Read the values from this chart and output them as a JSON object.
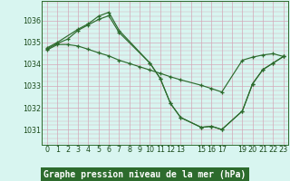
{
  "title": "Graphe pression niveau de la mer (hPa)",
  "background_color": "#d8f5f0",
  "grid_color": "#d4a8b8",
  "line_color": "#2d6b2d",
  "ylim": [
    1030.3,
    1036.9
  ],
  "yticks": [
    1031,
    1032,
    1033,
    1034,
    1035,
    1036
  ],
  "xlim": [
    -0.5,
    23.5
  ],
  "xtick_positions": [
    0,
    1,
    2,
    3,
    4,
    5,
    6,
    7,
    8,
    9,
    10,
    11,
    12,
    13,
    14,
    15,
    16,
    17,
    18,
    19,
    20,
    21,
    22,
    23
  ],
  "xtick_labels": [
    "0",
    "1",
    "2",
    "3",
    "4",
    "5",
    "6",
    "7",
    "8",
    "9",
    "10",
    "11",
    "12",
    "13",
    "",
    "15",
    "16",
    "17",
    "",
    "19",
    "20",
    "21",
    "22",
    "23"
  ],
  "line1_x": [
    0,
    1,
    3,
    4,
    5,
    6,
    7,
    10,
    11,
    12,
    13,
    15,
    16,
    17,
    19,
    20,
    21,
    22,
    23
  ],
  "line1_y": [
    1034.75,
    1035.0,
    1035.6,
    1035.85,
    1036.2,
    1036.38,
    1035.55,
    1034.05,
    1033.35,
    1032.2,
    1031.55,
    1031.1,
    1031.15,
    1031.0,
    1031.85,
    1033.1,
    1033.75,
    1034.05,
    1034.35
  ],
  "line2_x": [
    0,
    1,
    2,
    3,
    4,
    5,
    6,
    7,
    10,
    11,
    12,
    13,
    15,
    16,
    17,
    19,
    20,
    21,
    22,
    23
  ],
  "line2_y": [
    1034.7,
    1034.95,
    1035.15,
    1035.55,
    1035.8,
    1036.05,
    1036.22,
    1035.45,
    1034.05,
    1033.35,
    1032.2,
    1031.55,
    1031.1,
    1031.15,
    1031.0,
    1031.85,
    1033.1,
    1033.75,
    1034.05,
    1034.35
  ],
  "line3_x": [
    0,
    1,
    2,
    3,
    4,
    5,
    6,
    7,
    8,
    9,
    10,
    11,
    12,
    13,
    15,
    16,
    17,
    19,
    20,
    21,
    22,
    23
  ],
  "line3_y": [
    1034.65,
    1034.9,
    1034.9,
    1034.83,
    1034.68,
    1034.52,
    1034.38,
    1034.18,
    1034.03,
    1033.88,
    1033.73,
    1033.58,
    1033.42,
    1033.28,
    1033.03,
    1032.88,
    1032.72,
    1034.18,
    1034.32,
    1034.42,
    1034.48,
    1034.35
  ],
  "title_color": "white",
  "title_bg": "#2d6b2d",
  "tick_color": "#1a4a1a",
  "font_size_title": 7.0,
  "font_size_tick": 5.8,
  "lw": 0.85,
  "ms": 2.8
}
